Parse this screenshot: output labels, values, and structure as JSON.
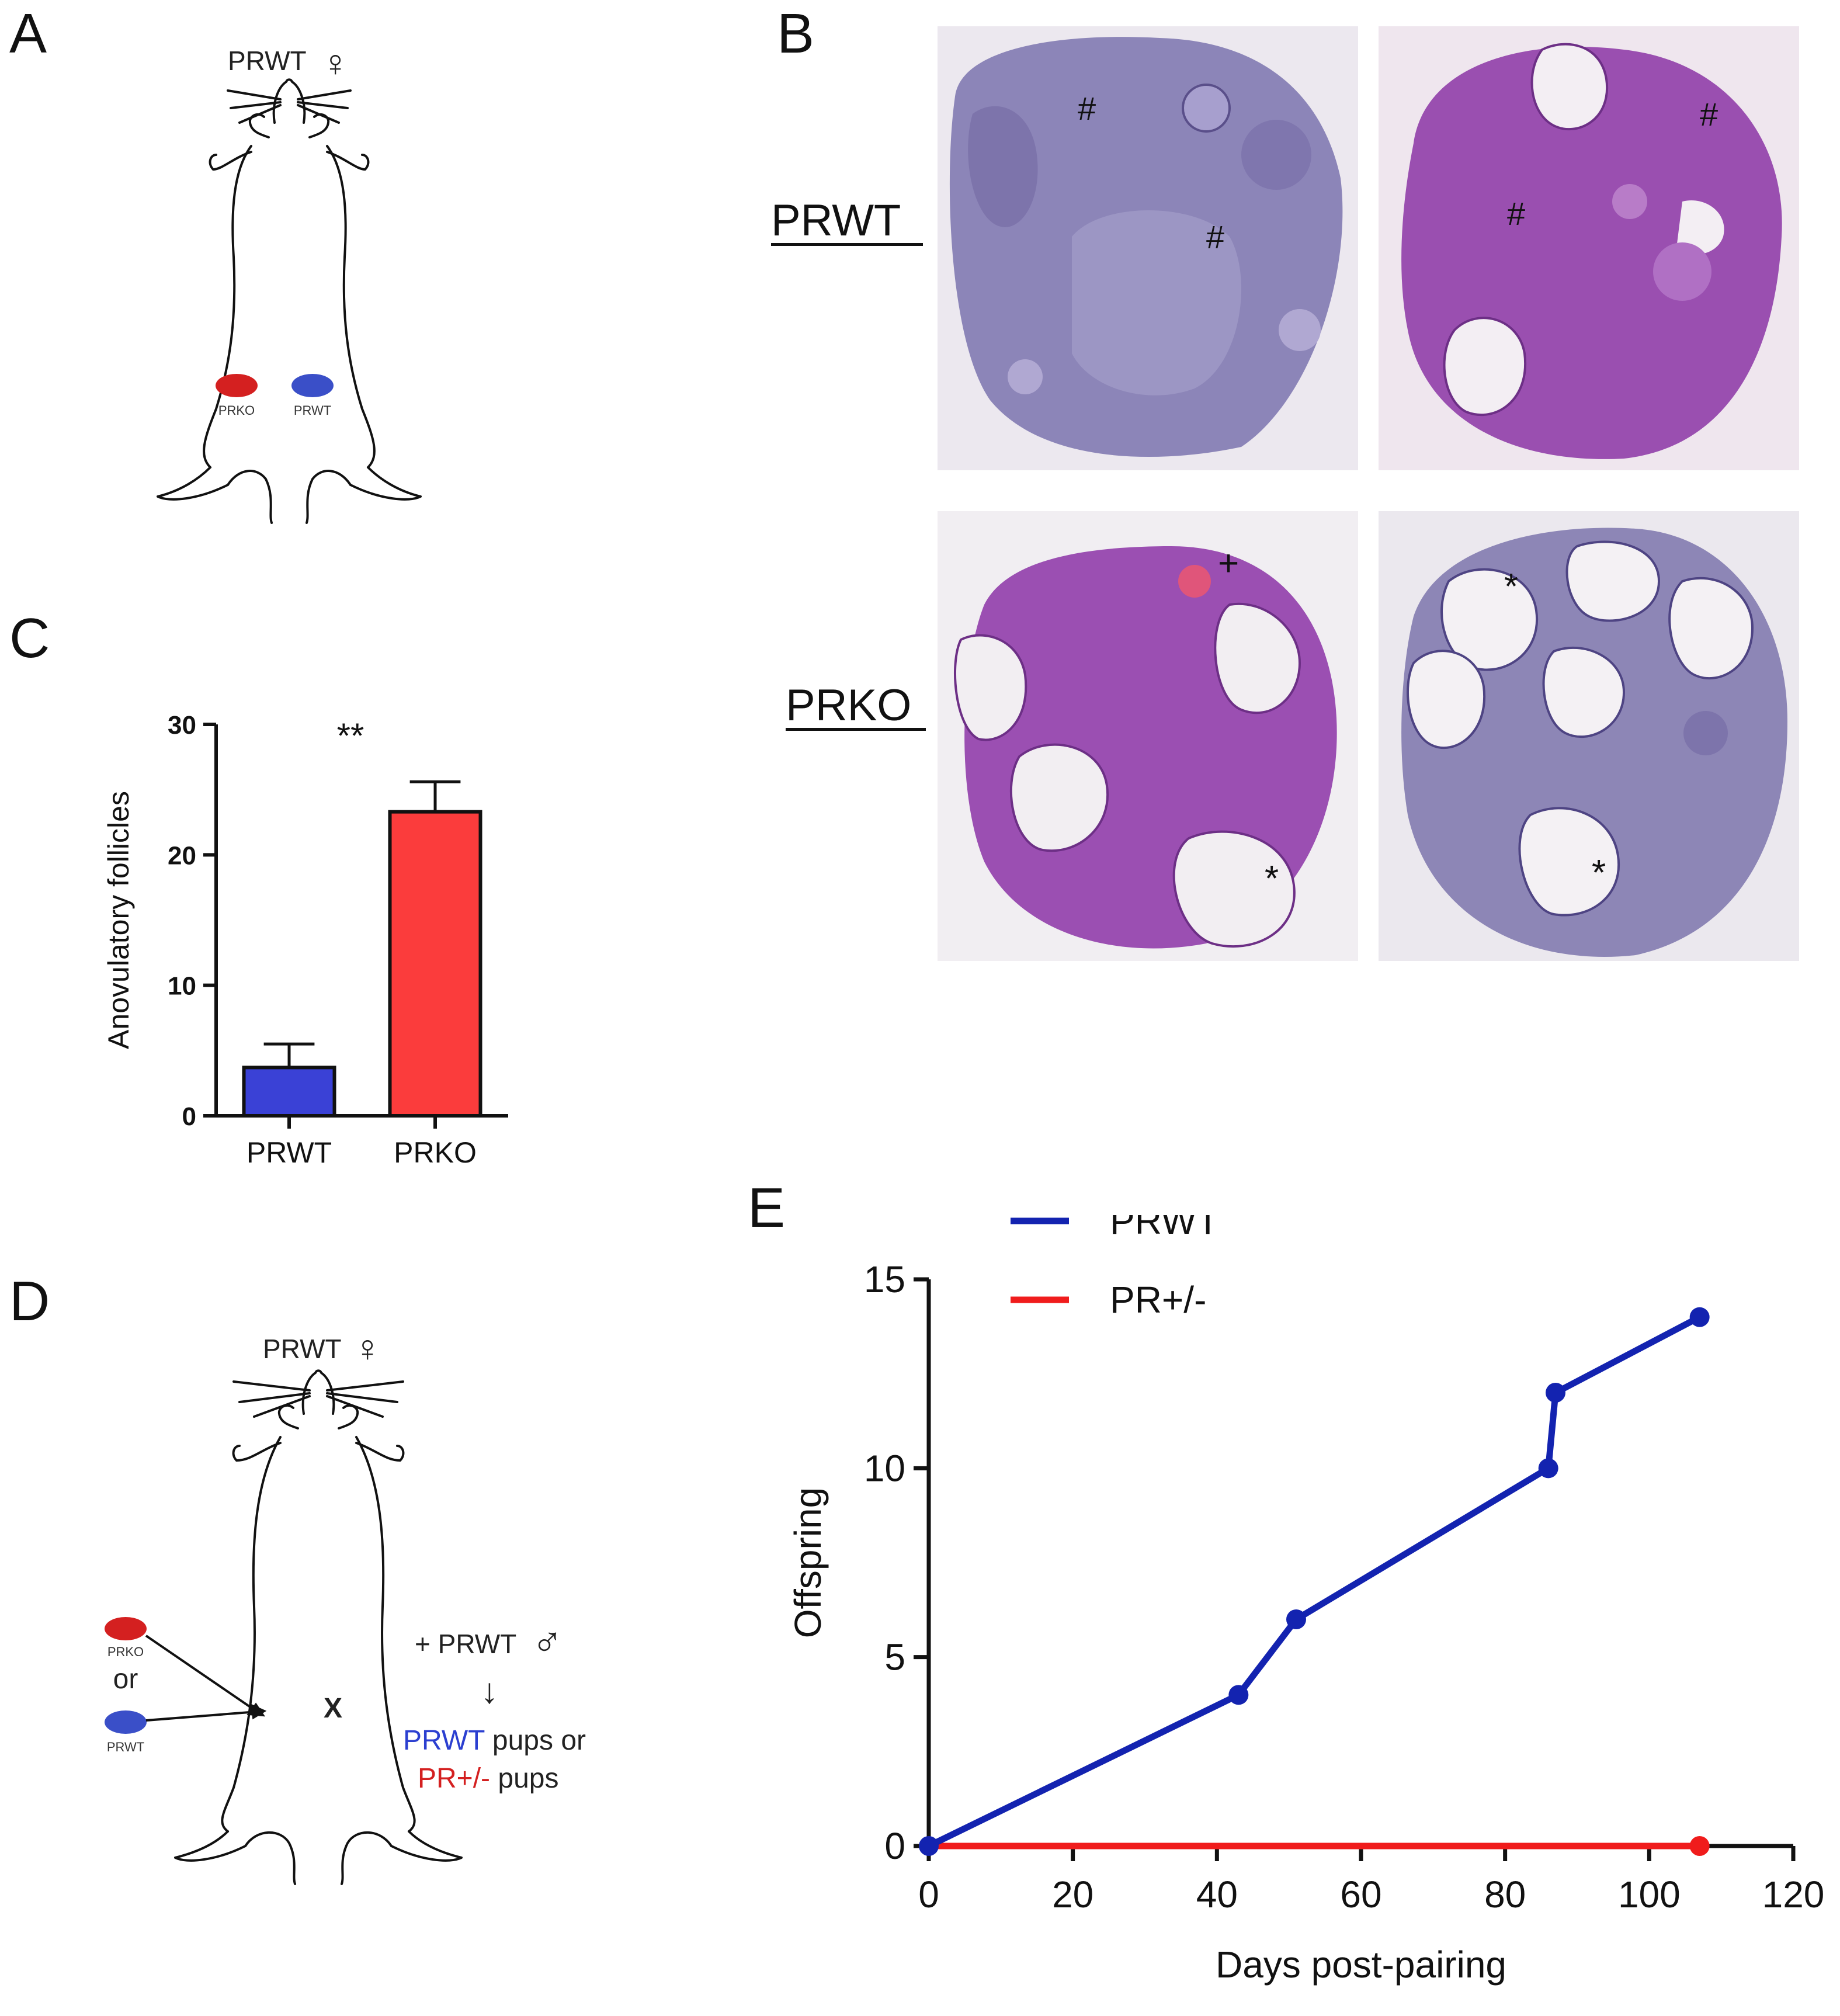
{
  "figure": {
    "panel_labels": {
      "A": "A",
      "B": "B",
      "C": "C",
      "D": "D",
      "E": "E"
    }
  },
  "panel_a": {
    "female_label": "PRWT",
    "female_symbol": "♀",
    "graft_left_label": "PRKO",
    "graft_right_label": "PRWT",
    "colors": {
      "prko": "#d42020",
      "prwt": "#3a4fc8"
    }
  },
  "panel_b": {
    "row_labels": [
      "PRWT",
      "PRKO"
    ],
    "markers": {
      "prwt_left": [
        "#",
        "#"
      ],
      "prwt_right": [
        "#",
        "#"
      ],
      "prko_left": [
        "+",
        "*"
      ],
      "prko_right": [
        "*",
        "*"
      ]
    },
    "colors": {
      "bg": "#ede9f0",
      "tissue_purple": "#9b4fb2",
      "tissue_blue": "#8a82b6",
      "cyst": "#f2eef2"
    }
  },
  "panel_c": {
    "significance": "**",
    "colors": {
      "prwt": "#3a41d6",
      "prko": "#fb3c3c"
    }
  },
  "panel_d": {
    "female_label": "PRWT",
    "female_symbol": "♀",
    "graft_top_label": "PRKO",
    "or_text": "or",
    "graft_bottom_label": "PRWT",
    "cross": "X",
    "male_label": "+ PRWT",
    "male_symbol": "♂",
    "arrow_down": "↓",
    "outcome_line1_colored": "PRWT",
    "outcome_line1_rest": " pups or",
    "outcome_line2_colored": "PR+/-",
    "outcome_line2_rest": " pups",
    "colors": {
      "prwt": "#2b3fd0",
      "prko": "#d42020"
    }
  },
  "panel_e": {
    "colors": {
      "prwt": "#1323b0",
      "pr_het": "#f01c1c"
    }
  },
  "chart_data": [
    {
      "type": "bar",
      "categories": [
        "PRWT",
        "PRKO"
      ],
      "values": [
        3.7,
        23.3
      ],
      "error": [
        1.8,
        2.3
      ],
      "ylabel": "Anovulatory follicles",
      "xlabel": "",
      "ylim": [
        0,
        30
      ],
      "yticks": [
        0,
        10,
        20,
        30
      ],
      "annotation": "**",
      "colors": [
        "#3a41d6",
        "#fb3c3c"
      ]
    },
    {
      "type": "line",
      "xlabel": "Days post-pairing",
      "ylabel": "Offspring",
      "xlim": [
        0,
        120
      ],
      "ylim": [
        0,
        15
      ],
      "xticks": [
        0,
        20,
        40,
        60,
        80,
        100,
        120
      ],
      "yticks": [
        0,
        5,
        10,
        15
      ],
      "legend": "top-left",
      "series": [
        {
          "name": "PRWT",
          "color": "#1323b0",
          "x": [
            0,
            43,
            51,
            86,
            87,
            107
          ],
          "y": [
            0,
            4,
            6,
            10,
            12,
            14
          ]
        },
        {
          "name": "PR+/-",
          "color": "#f01c1c",
          "x": [
            0,
            107
          ],
          "y": [
            0,
            0
          ]
        }
      ]
    }
  ]
}
